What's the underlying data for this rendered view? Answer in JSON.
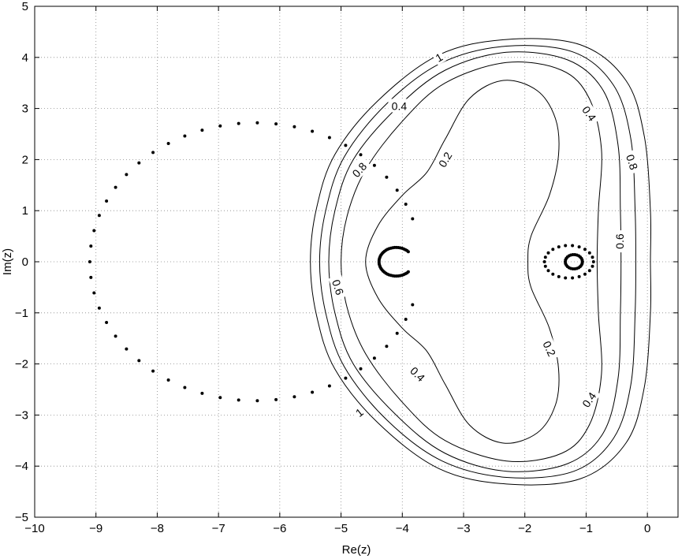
{
  "chart_data": {
    "type": "scatter",
    "title": "",
    "xlabel": "Re(z)",
    "ylabel": "Im(z)",
    "xlim": [
      -10,
      0.5
    ],
    "ylim": [
      -5,
      5
    ],
    "xticks": [
      -10,
      -9,
      -8,
      -7,
      -6,
      -5,
      -4,
      -3,
      -2,
      -1,
      0
    ],
    "yticks": [
      -5,
      -4,
      -3,
      -2,
      -1,
      0,
      1,
      2,
      3,
      4,
      5
    ],
    "xtick_labels": [
      "−10",
      "−9",
      "−8",
      "−7",
      "−6",
      "−5",
      "−4",
      "−3",
      "−2",
      "−1",
      "0"
    ],
    "ytick_labels": [
      "−5",
      "−4",
      "−3",
      "−2",
      "−1",
      "0",
      "1",
      "2",
      "3",
      "4",
      "5"
    ],
    "grid": true,
    "contour_levels": [
      0.2,
      0.4,
      0.6,
      0.8,
      1
    ],
    "contours": [
      {
        "level": 0.2,
        "label": "0.2",
        "points": [
          [
            -4.6,
            0.0
          ],
          [
            -4.4,
            0.7
          ],
          [
            -4.0,
            1.3
          ],
          [
            -3.6,
            1.75
          ],
          [
            -3.3,
            2.4
          ],
          [
            -2.9,
            3.2
          ],
          [
            -2.35,
            3.55
          ],
          [
            -1.8,
            3.35
          ],
          [
            -1.5,
            2.8
          ],
          [
            -1.45,
            2.1
          ],
          [
            -1.6,
            1.3
          ],
          [
            -1.9,
            0.5
          ],
          [
            -1.95,
            0.0
          ],
          [
            -1.9,
            -0.5
          ],
          [
            -1.6,
            -1.3
          ],
          [
            -1.45,
            -2.1
          ],
          [
            -1.5,
            -2.8
          ],
          [
            -1.8,
            -3.35
          ],
          [
            -2.35,
            -3.55
          ],
          [
            -2.9,
            -3.2
          ],
          [
            -3.3,
            -2.4
          ],
          [
            -3.6,
            -1.75
          ],
          [
            -4.0,
            -1.3
          ],
          [
            -4.4,
            -0.7
          ],
          [
            -4.6,
            0.0
          ]
        ]
      },
      {
        "level": 0.4,
        "label": "0.4",
        "points": [
          [
            -5.0,
            0.0
          ],
          [
            -4.9,
            0.9
          ],
          [
            -4.6,
            1.8
          ],
          [
            -4.0,
            2.75
          ],
          [
            -3.3,
            3.5
          ],
          [
            -2.3,
            3.9
          ],
          [
            -1.4,
            3.75
          ],
          [
            -0.95,
            3.2
          ],
          [
            -0.75,
            2.2
          ],
          [
            -0.8,
            1.0
          ],
          [
            -0.82,
            0.0
          ],
          [
            -0.8,
            -1.0
          ],
          [
            -0.75,
            -2.2
          ],
          [
            -0.95,
            -3.2
          ],
          [
            -1.4,
            -3.75
          ],
          [
            -2.3,
            -3.9
          ],
          [
            -3.3,
            -3.5
          ],
          [
            -4.0,
            -2.75
          ],
          [
            -4.6,
            -1.8
          ],
          [
            -4.9,
            -0.9
          ],
          [
            -5.0,
            0.0
          ]
        ]
      },
      {
        "level": 0.6,
        "label": "0.6",
        "points": [
          [
            -5.2,
            0.0
          ],
          [
            -5.1,
            1.0
          ],
          [
            -4.8,
            2.0
          ],
          [
            -4.1,
            3.0
          ],
          [
            -3.3,
            3.75
          ],
          [
            -2.3,
            4.1
          ],
          [
            -1.3,
            3.95
          ],
          [
            -0.72,
            3.35
          ],
          [
            -0.48,
            2.3
          ],
          [
            -0.44,
            1.0
          ],
          [
            -0.43,
            0.0
          ],
          [
            -0.44,
            -1.0
          ],
          [
            -0.48,
            -2.3
          ],
          [
            -0.72,
            -3.35
          ],
          [
            -1.3,
            -3.95
          ],
          [
            -2.3,
            -4.1
          ],
          [
            -3.3,
            -3.75
          ],
          [
            -4.1,
            -3.0
          ],
          [
            -4.8,
            -2.0
          ],
          [
            -5.1,
            -1.0
          ],
          [
            -5.2,
            0.0
          ]
        ]
      },
      {
        "level": 0.8,
        "label": "0.8",
        "points": [
          [
            -5.35,
            0.0
          ],
          [
            -5.25,
            1.0
          ],
          [
            -4.95,
            2.05
          ],
          [
            -4.25,
            3.1
          ],
          [
            -3.35,
            3.9
          ],
          [
            -2.3,
            4.22
          ],
          [
            -1.2,
            4.1
          ],
          [
            -0.55,
            3.45
          ],
          [
            -0.27,
            2.4
          ],
          [
            -0.2,
            1.0
          ],
          [
            -0.19,
            0.0
          ],
          [
            -0.2,
            -1.0
          ],
          [
            -0.27,
            -2.4
          ],
          [
            -0.55,
            -3.45
          ],
          [
            -1.2,
            -4.1
          ],
          [
            -2.3,
            -4.22
          ],
          [
            -3.35,
            -3.9
          ],
          [
            -4.25,
            -3.1
          ],
          [
            -4.95,
            -2.05
          ],
          [
            -5.25,
            -1.0
          ],
          [
            -5.35,
            0.0
          ]
        ]
      },
      {
        "level": 1,
        "label": "1",
        "points": [
          [
            -5.5,
            0.0
          ],
          [
            -5.4,
            1.05
          ],
          [
            -5.1,
            2.1
          ],
          [
            -4.4,
            3.15
          ],
          [
            -3.4,
            4.05
          ],
          [
            -2.3,
            4.35
          ],
          [
            -1.1,
            4.25
          ],
          [
            -0.35,
            3.55
          ],
          [
            -0.05,
            2.45
          ],
          [
            0.05,
            1.0
          ],
          [
            0.05,
            0.0
          ],
          [
            0.05,
            -1.0
          ],
          [
            -0.05,
            -2.45
          ],
          [
            -0.35,
            -3.55
          ],
          [
            -1.1,
            -4.25
          ],
          [
            -2.3,
            -4.35
          ],
          [
            -3.4,
            -4.05
          ],
          [
            -4.4,
            -3.15
          ],
          [
            -5.1,
            -2.1
          ],
          [
            -5.4,
            -1.05
          ],
          [
            -5.5,
            0.0
          ]
        ]
      }
    ],
    "contour_label_positions": [
      {
        "label": "1",
        "x": -3.4,
        "y": 4.0,
        "angle": -30
      },
      {
        "label": "1",
        "x": -4.7,
        "y": -2.95,
        "angle": -38
      },
      {
        "label": "0.8",
        "x": -4.7,
        "y": 1.8,
        "angle": -48
      },
      {
        "label": "0.8",
        "x": -0.25,
        "y": 1.95,
        "angle": 72
      },
      {
        "label": "0.6",
        "x": -5.05,
        "y": -0.5,
        "angle": 72
      },
      {
        "label": "0.6",
        "x": -0.45,
        "y": 0.4,
        "angle": -90
      },
      {
        "label": "0.4",
        "x": -4.05,
        "y": 3.05,
        "angle": 0
      },
      {
        "label": "0.4",
        "x": -0.95,
        "y": 2.9,
        "angle": 55
      },
      {
        "label": "0.4",
        "x": -3.75,
        "y": -2.2,
        "angle": 45
      },
      {
        "label": "0.4",
        "x": -0.95,
        "y": -2.7,
        "angle": -55
      },
      {
        "label": "0.2",
        "x": -3.3,
        "y": 2.0,
        "angle": -60
      },
      {
        "label": "0.2",
        "x": -1.6,
        "y": -1.7,
        "angle": 65
      }
    ],
    "series": [
      {
        "type": "dots",
        "center": [
          -6.4,
          0.0
        ],
        "rx": 2.7,
        "ry": 2.72,
        "count": 51,
        "start_angle_deg": 18,
        "end_angle_deg": 342
      },
      {
        "type": "crescent",
        "center": [
          -4.1,
          0.0
        ],
        "r": 0.28,
        "count": 44,
        "start_angle_deg": 45,
        "end_angle_deg": 315
      },
      {
        "type": "dots",
        "center": [
          -1.28,
          0.0
        ],
        "rx": 0.4,
        "ry": 0.32,
        "count": 22,
        "start_angle_deg": 0,
        "end_angle_deg": 360
      },
      {
        "type": "ring",
        "center": [
          -1.2,
          0.0
        ],
        "r": 0.14,
        "count": 26,
        "start_angle_deg": 0,
        "end_angle_deg": 360
      }
    ]
  }
}
